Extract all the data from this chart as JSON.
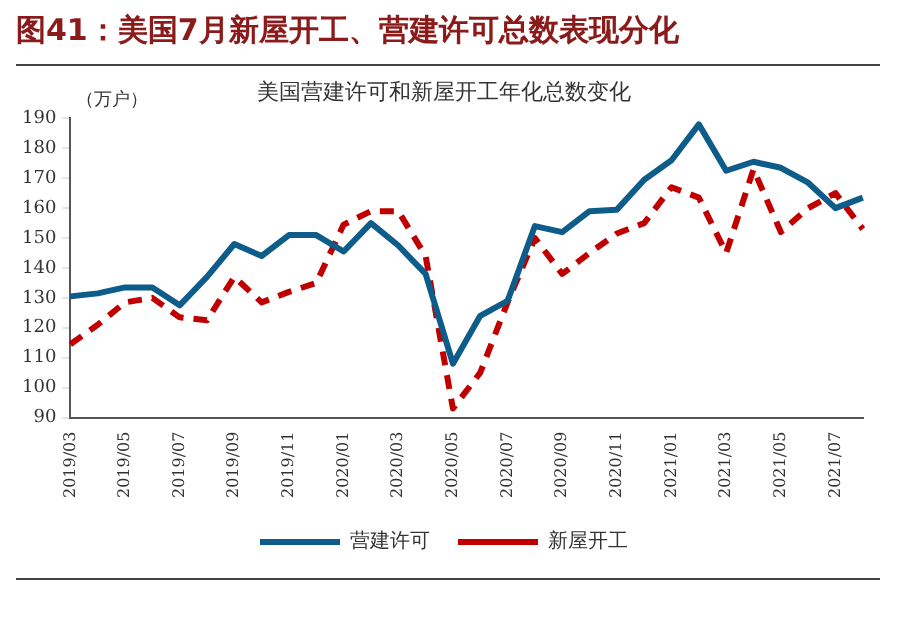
{
  "chart_data": {
    "type": "line",
    "title": "图41：美国7月新屋开工、营建许可总数表现分化",
    "subtitle": "美国营建许可和新屋开工年化总数变化",
    "ylabel": "（万户）",
    "categories": [
      "2019/03",
      null,
      "2019/05",
      null,
      "2019/07",
      null,
      "2019/09",
      null,
      "2019/11",
      null,
      "2020/01",
      null,
      "2020/03",
      null,
      "2020/05",
      null,
      "2020/07",
      null,
      "2020/09",
      null,
      "2020/11",
      null,
      "2021/01",
      null,
      "2021/03",
      null,
      "2021/05",
      null,
      "2021/07",
      null
    ],
    "series": [
      {
        "name": "营建许可",
        "color": "#0e5c8a",
        "line_style": "solid",
        "values": [
          130.5,
          131.5,
          133.5,
          133.5,
          127.5,
          137,
          148,
          144,
          151,
          151,
          145.5,
          155,
          147.5,
          138,
          108,
          124,
          129,
          154,
          152,
          159,
          159.5,
          169.5,
          176,
          188,
          172.5,
          175.5,
          173.5,
          168.5,
          160,
          163.5
        ]
      },
      {
        "name": "新屋开工",
        "color": "#c00000",
        "line_style": "dashed",
        "values": [
          114.5,
          121,
          128.5,
          130,
          123.5,
          122.5,
          137,
          128.5,
          132,
          135,
          154.5,
          159,
          159,
          144,
          93,
          105,
          128.5,
          150,
          138,
          145,
          151.5,
          155,
          167,
          163.5,
          145,
          173,
          152,
          160,
          165,
          153
        ]
      }
    ],
    "ylim": [
      90,
      190
    ],
    "yticks": [
      90,
      100,
      110,
      120,
      130,
      140,
      150,
      160,
      170,
      180,
      190
    ],
    "legend": "bottom",
    "grid": false,
    "marker": "none"
  }
}
